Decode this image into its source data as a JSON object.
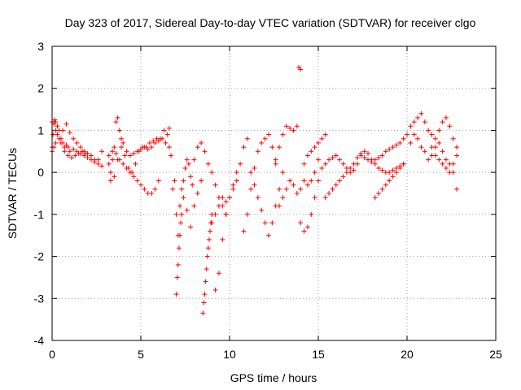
{
  "chart_data": {
    "type": "scatter",
    "title": "Day 323 of 2017, Sidereal Day-to-day VTEC variation (SDTVAR) for receiver clgo",
    "xlabel": "GPS time / hours",
    "ylabel": "SDTVAR / TECUs",
    "xlim": [
      0,
      25
    ],
    "ylim": [
      -4,
      3
    ],
    "xticks": [
      "0",
      "5",
      "10",
      "15",
      "20",
      "25"
    ],
    "yticks": [
      "-4",
      "-3",
      "-2",
      "-1",
      "0",
      "1",
      "2",
      "3"
    ],
    "grid": true,
    "marker": "+",
    "marker_color": "#ff0000",
    "series": [
      {
        "name": "SDTVAR",
        "x": [
          0.0,
          0.05,
          0.1,
          0.15,
          0.2,
          0.3,
          0.4,
          0.5,
          0.6,
          0.7,
          0.8,
          0.9,
          1.0,
          1.2,
          1.4,
          1.6,
          1.8,
          2.0,
          2.2,
          2.4,
          2.6,
          2.8,
          0.0,
          0.1,
          0.2,
          0.4,
          0.6,
          0.8,
          1.0,
          1.2,
          1.4,
          1.6,
          1.8,
          2.0,
          2.2,
          2.4,
          2.6,
          2.8,
          0.0,
          0.1,
          0.2,
          0.3,
          0.5,
          0.7,
          0.9,
          1.1,
          1.3,
          1.5,
          1.7,
          1.9,
          3.2,
          3.3,
          3.4,
          3.5,
          3.6,
          3.7,
          3.8,
          3.9,
          4.0,
          4.2,
          4.4,
          4.6,
          4.8,
          5.0,
          5.2,
          5.4,
          5.6,
          5.8,
          6.0,
          6.2,
          6.4,
          6.6,
          3.3,
          3.5,
          3.7,
          3.9,
          4.1,
          4.3,
          4.5,
          4.7,
          4.9,
          5.1,
          5.3,
          5.5,
          5.7,
          5.9,
          6.1,
          6.3,
          3.2,
          3.4,
          3.6,
          3.8,
          4.0,
          4.2,
          4.4,
          4.6,
          4.8,
          5.0,
          5.2,
          5.4,
          5.6,
          5.8,
          6.0,
          6.5,
          6.6,
          6.7,
          6.8,
          6.9,
          7.0,
          7.1,
          7.2,
          7.3,
          7.4,
          7.5,
          7.6,
          7.7,
          7.8,
          7.9,
          7.0,
          7.05,
          7.1,
          7.15,
          7.2,
          7.25,
          7.3,
          7.4,
          7.6,
          7.8,
          8.0,
          8.2,
          8.4,
          8.0,
          8.2,
          8.4,
          8.6,
          8.8,
          9.0,
          9.2,
          9.4,
          9.6,
          9.8,
          8.5,
          8.55,
          8.6,
          8.65,
          8.7,
          8.75,
          8.8,
          8.85,
          8.9,
          8.95,
          9.0,
          9.2,
          9.4,
          9.6,
          9.8,
          10.0,
          10.2,
          10.4,
          10.6,
          10.8,
          11.0,
          9.0,
          9.2,
          9.4,
          9.6,
          9.8,
          10.0,
          10.2,
          10.4,
          10.8,
          11.0,
          11.2,
          11.4,
          11.6,
          11.8,
          12.0,
          12.2,
          12.4,
          12.6,
          11.2,
          11.4,
          11.6,
          11.8,
          12.0,
          12.2,
          12.4,
          12.6,
          12.8,
          13.0,
          12.6,
          12.8,
          13.0,
          13.2,
          13.4,
          13.6,
          13.8,
          12.8,
          13.0,
          13.2,
          13.4,
          13.6,
          13.8,
          14.0,
          14.2,
          14.4,
          14.6,
          14.8,
          15.0,
          13.9,
          14.0,
          14.0,
          14.2,
          14.4,
          14.6,
          14.8,
          15.0,
          15.2,
          15.4,
          15.6,
          15.8,
          16.0,
          16.2,
          16.4,
          16.6,
          16.8,
          17.0,
          17.2,
          17.4,
          17.6,
          17.8,
          18.0,
          18.2,
          18.4,
          18.6,
          18.8,
          19.0,
          19.2,
          19.4,
          19.6,
          19.8,
          14.2,
          14.4,
          14.6,
          14.8,
          15.0,
          15.2,
          15.4,
          15.4,
          15.6,
          15.8,
          16.0,
          16.2,
          16.4,
          16.6,
          16.8,
          17.0,
          17.2,
          17.4,
          17.6,
          17.8,
          18.0,
          18.2,
          18.4,
          18.6,
          18.8,
          19.0,
          19.2,
          19.4,
          19.6,
          19.8,
          18.2,
          18.4,
          18.6,
          18.8,
          19.0,
          19.2,
          19.4,
          19.6,
          19.8,
          20.0,
          20.2,
          20.4,
          20.6,
          20.8,
          21.0,
          21.2,
          21.4,
          21.6,
          21.8,
          22.0,
          22.2,
          22.4,
          22.6,
          22.8,
          20.2,
          20.4,
          20.6,
          20.8,
          21.0,
          21.2,
          21.4,
          21.6,
          21.8,
          22.0,
          22.2,
          22.4,
          22.6,
          22.8,
          21.4,
          21.6,
          21.8,
          22.0,
          22.2,
          22.4,
          22.6,
          22.8
        ],
        "y": [
          0.6,
          0.9,
          1.2,
          1.25,
          1.2,
          1.1,
          1.0,
          0.8,
          0.7,
          0.6,
          0.65,
          0.6,
          0.5,
          0.55,
          0.5,
          0.45,
          0.4,
          0.35,
          0.3,
          0.25,
          0.3,
          0.5,
          0.5,
          0.6,
          0.7,
          0.8,
          1.0,
          1.15,
          0.95,
          0.8,
          0.7,
          0.6,
          0.5,
          0.45,
          0.4,
          0.3,
          0.2,
          0.15,
          1.2,
          1.15,
          1.0,
          0.9,
          0.7,
          0.5,
          0.4,
          0.35,
          0.4,
          0.45,
          0.5,
          0.45,
          0.2,
          0.0,
          0.3,
          0.6,
          1.2,
          1.3,
          1.0,
          0.8,
          0.7,
          0.5,
          0.4,
          0.45,
          0.5,
          0.55,
          0.6,
          0.55,
          0.6,
          0.7,
          0.75,
          0.8,
          0.7,
          0.6,
          -0.2,
          -0.1,
          0.3,
          0.6,
          0.4,
          0.1,
          0.0,
          0.2,
          0.5,
          0.6,
          0.6,
          0.7,
          0.75,
          0.8,
          0.8,
          1.0,
          0.4,
          0.5,
          0.45,
          0.3,
          0.2,
          0.1,
          0.0,
          -0.1,
          -0.2,
          -0.3,
          -0.4,
          -0.5,
          -0.5,
          -0.4,
          -0.2,
          0.9,
          1.05,
          0.4,
          -0.4,
          -0.2,
          -1.0,
          -1.5,
          -0.8,
          -0.4,
          -0.2,
          0.1,
          0.3,
          0.2,
          -0.1,
          -0.3,
          -2.9,
          -2.5,
          -2.2,
          -1.8,
          -1.5,
          -1.2,
          -1.0,
          -0.6,
          -0.9,
          -1.3,
          -0.8,
          -0.5,
          -0.2,
          0.3,
          0.6,
          0.7,
          0.5,
          0.2,
          0.0,
          -0.3,
          -0.6,
          -0.8,
          -1.0,
          -3.35,
          -3.1,
          -2.9,
          -2.6,
          -2.3,
          -2.0,
          -1.8,
          -1.6,
          -1.4,
          -1.2,
          -1.0,
          -2.8,
          -2.4,
          -1.6,
          -1.0,
          -0.6,
          -0.3,
          0.0,
          0.2,
          0.6,
          0.8,
          -1.2,
          -1.0,
          -0.8,
          -0.6,
          -0.7,
          -0.6,
          -0.4,
          -0.2,
          -1.4,
          -1.0,
          -0.4,
          0.1,
          0.5,
          0.7,
          0.8,
          0.9,
          0.6,
          0.2,
          0.0,
          -0.3,
          -0.6,
          -0.9,
          -1.2,
          -1.5,
          -1.2,
          -0.8,
          -0.4,
          0.0,
          0.3,
          0.6,
          0.9,
          1.1,
          1.05,
          1.0,
          1.1,
          -0.8,
          -0.6,
          -0.4,
          -0.2,
          -0.3,
          -0.5,
          -0.4,
          -0.2,
          -0.3,
          -0.2,
          0.0,
          0.3,
          2.5,
          2.45,
          -1.2,
          -1.4,
          -1.3,
          -1.0,
          -0.6,
          -0.2,
          0.1,
          0.2,
          0.3,
          0.35,
          0.4,
          0.3,
          0.2,
          0.1,
          0.0,
          0.05,
          0.2,
          0.4,
          0.35,
          0.3,
          0.25,
          0.3,
          0.35,
          0.4,
          0.5,
          0.55,
          0.6,
          0.65,
          0.7,
          0.8,
          0.2,
          0.4,
          0.5,
          0.6,
          0.7,
          0.8,
          0.9,
          -0.6,
          -0.5,
          -0.4,
          -0.3,
          -0.2,
          -0.1,
          0.0,
          0.1,
          0.2,
          0.35,
          0.45,
          0.5,
          0.45,
          0.3,
          0.2,
          0.1,
          0.05,
          0.0,
          0.0,
          0.05,
          0.1,
          0.15,
          0.2,
          -0.6,
          -0.5,
          -0.4,
          -0.3,
          -0.2,
          -0.1,
          0.0,
          0.1,
          0.2,
          0.9,
          1.1,
          1.2,
          1.3,
          1.4,
          1.2,
          1.0,
          0.9,
          0.8,
          1.0,
          1.2,
          1.3,
          1.1,
          0.8,
          0.6,
          0.7,
          0.9,
          0.8,
          0.6,
          0.5,
          0.3,
          0.4,
          0.6,
          0.7,
          0.5,
          0.3,
          0.2,
          0.0,
          -0.4,
          0.6,
          0.4,
          0.3,
          0.2,
          0.1,
          0.0,
          0.2,
          0.4
        ]
      }
    ]
  }
}
